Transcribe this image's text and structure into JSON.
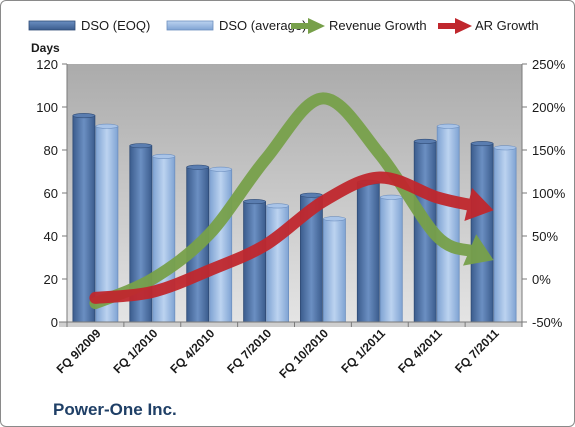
{
  "chart_data": {
    "type": "bar",
    "title": "",
    "company": "Power-One Inc.",
    "ylabel": "Days",
    "ylim": [
      0,
      120
    ],
    "y_ticks": [
      "0",
      "20",
      "40",
      "60",
      "80",
      "100",
      "120"
    ],
    "y2lim": [
      -50,
      250
    ],
    "y2_ticks": [
      "-50%",
      "0%",
      "50%",
      "100%",
      "150%",
      "200%",
      "250%"
    ],
    "categories": [
      "FQ 9/2009",
      "FQ 1/2010",
      "FQ 4/2010",
      "FQ 7/2010",
      "FQ 10/2010",
      "FQ 1/2011",
      "FQ 4/2011",
      "FQ 7/2011"
    ],
    "series": [
      {
        "name": "DSO (EOQ)",
        "kind": "bar",
        "axis": "left",
        "color": "#4a6fa5",
        "values": [
          96,
          82,
          72,
          56,
          59,
          65,
          84,
          83
        ]
      },
      {
        "name": "DSO (average)",
        "kind": "bar",
        "axis": "left",
        "color": "#8eb4e3",
        "values": [
          91,
          77,
          71,
          54,
          48,
          58,
          91,
          81
        ]
      },
      {
        "name": "Revenue Growth",
        "kind": "arrow-line",
        "axis": "right",
        "color": "#77a04a",
        "values": [
          -28,
          0,
          52,
          140,
          210,
          145,
          50,
          22
        ]
      },
      {
        "name": "AR Growth",
        "kind": "arrow-line",
        "axis": "right",
        "color": "#c0272d",
        "values": [
          -22,
          -15,
          10,
          40,
          90,
          118,
          95,
          80
        ]
      }
    ],
    "grid": false,
    "legend_position": "top"
  }
}
